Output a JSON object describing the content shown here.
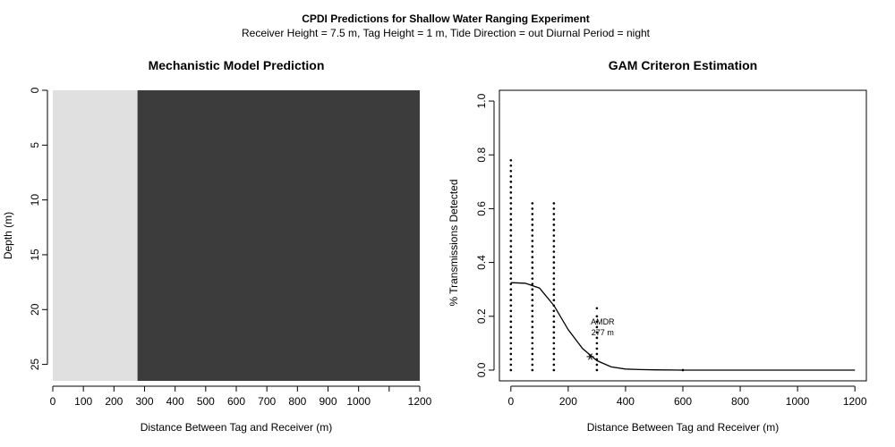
{
  "header": {
    "title": "CPDI Predictions for Shallow Water Ranging Experiment",
    "subtitle": "Receiver Height = 7.5 m, Tag Height = 1 m, Tide Direction = out Diurnal Period = night"
  },
  "chart_data": [
    {
      "type": "heatmap",
      "title": "Mechanistic Model Prediction",
      "xlabel": "Distance Between Tag and Receiver (m)",
      "ylabel": "Depth (m)",
      "xlim": [
        0,
        1200
      ],
      "ylim": [
        26.5,
        0
      ],
      "x_ticks": [
        0,
        100,
        200,
        300,
        400,
        500,
        600,
        700,
        800,
        900,
        1000,
        1100,
        1200
      ],
      "x_tick_labels": [
        "0",
        "100",
        "200",
        "300",
        "400",
        "500",
        "600",
        "700",
        "800",
        "900",
        "1000",
        "",
        "1200"
      ],
      "y_ticks": [
        0,
        5,
        10,
        15,
        20,
        25
      ],
      "y_tick_labels": [
        "0",
        "5",
        "10",
        "15",
        "20",
        "25"
      ],
      "regions": [
        {
          "x_from": 0,
          "x_to": 277,
          "color": "#e0e0e0"
        },
        {
          "x_from": 277,
          "x_to": 1200,
          "color": "#3c3c3c"
        }
      ]
    },
    {
      "type": "scatter",
      "title": "GAM Criteron Estimation",
      "xlabel": "Distance Between Tag and Receiver (m)",
      "ylabel": "% Transmissions Detected",
      "xlim": [
        -40,
        1240
      ],
      "ylim": [
        -0.04,
        1.04
      ],
      "x_ticks": [
        0,
        200,
        400,
        600,
        800,
        1000,
        1200
      ],
      "x_tick_labels": [
        "0",
        "200",
        "400",
        "600",
        "800",
        "1000",
        "1200"
      ],
      "y_ticks": [
        0,
        0.2,
        0.4,
        0.6,
        0.8,
        1.0
      ],
      "y_tick_labels": [
        "0.0",
        "0.2",
        "0.4",
        "0.6",
        "0.8",
        "1.0"
      ],
      "point_columns": [
        {
          "x": 0,
          "y_min": 0,
          "y_max": 0.78,
          "step": 0.02
        },
        {
          "x": 75,
          "y_min": 0,
          "y_max": 0.62,
          "step": 0.02
        },
        {
          "x": 150,
          "y_min": 0,
          "y_max": 0.62,
          "step": 0.02
        },
        {
          "x": 300,
          "y_min": 0,
          "y_max": 0.18,
          "step": 0.02
        },
        {
          "x": 600,
          "y_min": 0,
          "y_max": 0,
          "step": 0.02
        }
      ],
      "extra_points": [
        {
          "x": 300,
          "y": 0.2
        },
        {
          "x": 300,
          "y": 0.23
        }
      ],
      "curve": {
        "x": [
          0,
          50,
          100,
          150,
          200,
          250,
          300,
          350,
          400,
          450,
          500,
          600,
          700,
          800,
          900,
          1000,
          1100,
          1200
        ],
        "y": [
          0.325,
          0.323,
          0.305,
          0.24,
          0.15,
          0.08,
          0.035,
          0.012,
          0.004,
          0.002,
          0.001,
          0,
          0,
          0,
          0,
          0,
          0,
          0
        ]
      },
      "amdr_point": {
        "x": 277,
        "y": 0.05
      },
      "annotation": {
        "line1": "AMDR",
        "line2": "277 m",
        "x": 320,
        "y": 0.13
      }
    }
  ]
}
